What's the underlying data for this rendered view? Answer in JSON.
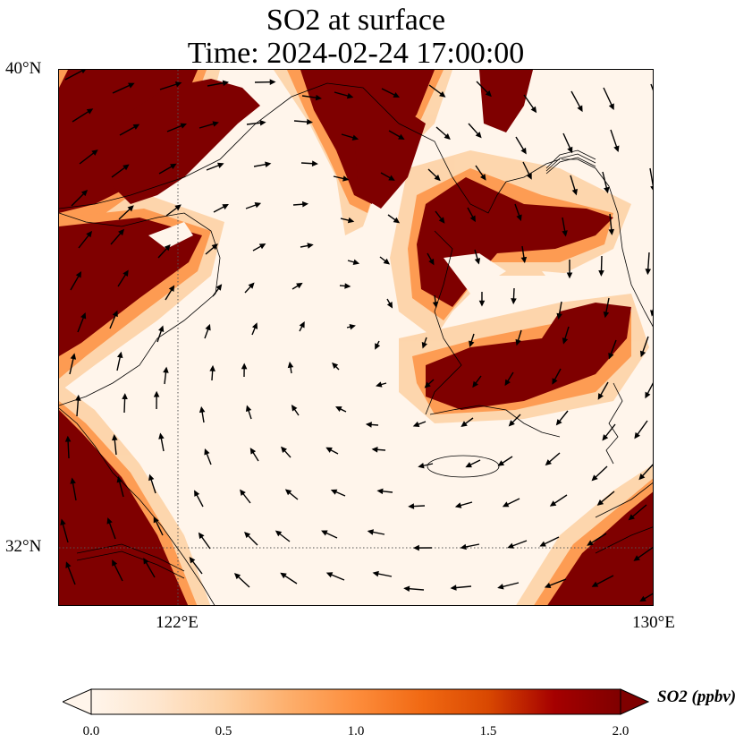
{
  "title": {
    "line1": "SO2 at surface",
    "line2": "Time: 2024-02-24 17:00:00"
  },
  "axes": {
    "lat_ticks": [
      "40°N",
      "32°N"
    ],
    "lon_ticks": [
      "122°E",
      "130°E"
    ]
  },
  "colorbar": {
    "label": "SO2 (ppbv)",
    "ticks": [
      "0.0",
      "0.5",
      "1.0",
      "1.5",
      "2.0"
    ],
    "range": [
      0.0,
      2.0
    ],
    "extend": "both",
    "colormap": [
      "#fff5eb",
      "#fee6ce",
      "#fdd0a2",
      "#fdae6b",
      "#fd8d3c",
      "#f16913",
      "#d94801",
      "#a50000",
      "#7f0000"
    ]
  },
  "map": {
    "lon_range": [
      120,
      130
    ],
    "lat_range": [
      31,
      40
    ],
    "gridlines": "dotted at 122°E and 32°N",
    "features": [
      "coastlines",
      "wind vectors",
      "SO2 concentration field"
    ]
  }
}
